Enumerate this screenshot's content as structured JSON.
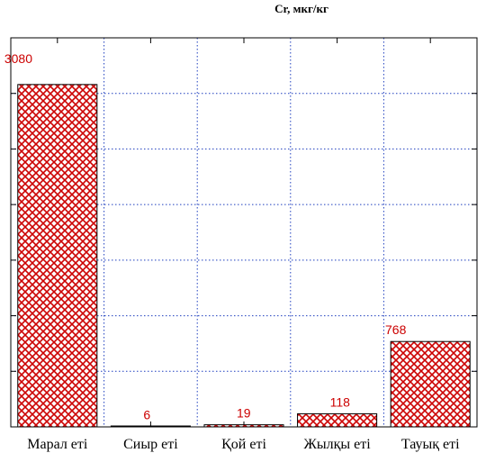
{
  "chart_data": {
    "type": "bar",
    "title": "Cr, мкг/кг",
    "xlabel": "",
    "ylabel": "",
    "categories": [
      "Марал еті",
      "Сиыр еті",
      "Қой еті",
      "Жылқы еті",
      "Тауық еті"
    ],
    "values": [
      3080,
      6,
      19,
      118,
      768
    ],
    "data_labels": [
      "3080",
      "6",
      "19",
      "118",
      "768"
    ],
    "ylim": [
      0,
      3500
    ],
    "grid": true,
    "bar_color": "#cc0000",
    "grid_color": "#1f3fbf",
    "label_color": "#cc0000"
  }
}
